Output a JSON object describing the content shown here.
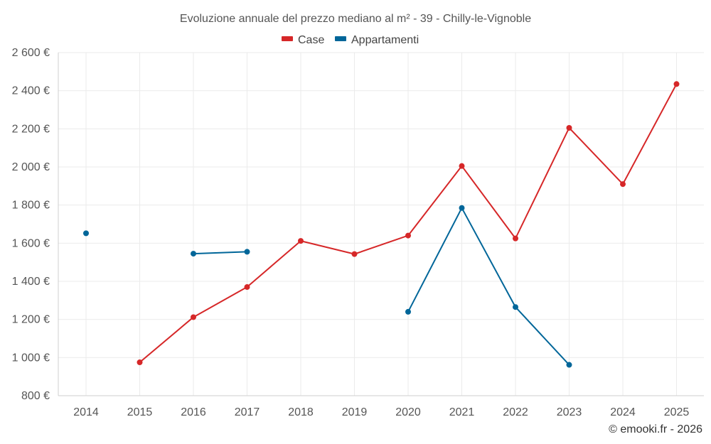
{
  "chart_data": {
    "type": "line",
    "title": "Evoluzione annuale del prezzo mediano al m² - 39 - Chilly-le-Vignoble",
    "xlabel": "",
    "ylabel": "",
    "categories": [
      "2014",
      "2015",
      "2016",
      "2017",
      "2018",
      "2019",
      "2020",
      "2021",
      "2022",
      "2023",
      "2024",
      "2025"
    ],
    "ylim": [
      800,
      2600
    ],
    "yticks": [
      800,
      1000,
      1200,
      1400,
      1600,
      1800,
      2000,
      2200,
      2400,
      2600
    ],
    "ytick_labels": [
      "800 €",
      "1 000 €",
      "1 200 €",
      "1 400 €",
      "1 600 €",
      "1 800 €",
      "2 000 €",
      "2 200 €",
      "2 400 €",
      "2 600 €"
    ],
    "grid": true,
    "legend_position": "top-center",
    "series": [
      {
        "name": "Case",
        "color": "#d62728",
        "values": [
          null,
          975,
          1212,
          1370,
          1612,
          1543,
          1640,
          2005,
          1625,
          2205,
          1910,
          2435
        ]
      },
      {
        "name": "Appartamenti",
        "color": "#006699",
        "values": [
          1652,
          null,
          1545,
          1555,
          null,
          null,
          1240,
          1785,
          1265,
          962,
          null,
          null
        ]
      }
    ],
    "credit": "© emooki.fr - 2026"
  }
}
